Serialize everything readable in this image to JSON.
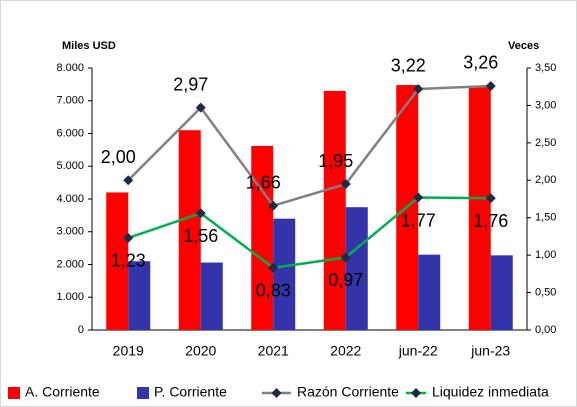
{
  "chart_data": {
    "type": "bar",
    "y_label": "Miles USD",
    "y2_label": "Veces",
    "categories": [
      "2019",
      "2020",
      "2021",
      "2022",
      "jun-22",
      "jun-23"
    ],
    "series": [
      {
        "name": "A. Corriente",
        "color": "#ff0000",
        "type": "bar",
        "values": [
          4200,
          6100,
          5620,
          7300,
          7480,
          7430
        ]
      },
      {
        "name": "P. Corriente",
        "color": "#3333aa",
        "type": "bar",
        "values": [
          2100,
          2060,
          3400,
          3750,
          2300,
          2280
        ]
      },
      {
        "name": "Razón Corriente",
        "color": "#808080",
        "type": "line",
        "axis": "y2",
        "values": [
          2.0,
          2.97,
          1.66,
          1.95,
          3.22,
          3.26
        ],
        "value_labels": [
          "2,00",
          "2,97",
          "1,66",
          "1,95",
          "3,22",
          "3,26"
        ]
      },
      {
        "name": "Liquidez inmediata",
        "color": "#00b050",
        "type": "line",
        "axis": "y2",
        "values": [
          1.23,
          1.56,
          0.83,
          0.97,
          1.77,
          1.76
        ],
        "value_labels": [
          "1,23",
          "1,56",
          "0,83",
          "0,97",
          "1,77",
          "1,76"
        ]
      }
    ],
    "ylim": [
      0,
      8000
    ],
    "yticks": [
      0,
      {
        "value": 1000,
        "label": "1.000"
      },
      {
        "value": 2000,
        "label": "2.000"
      },
      {
        "value": 3000,
        "label": "3.000"
      },
      {
        "value": 4000,
        "label": "4.000"
      },
      {
        "value": 5000,
        "label": "5.000"
      },
      {
        "value": 6000,
        "label": "6.000"
      },
      {
        "value": 7000,
        "label": "7.000"
      },
      {
        "value": 8000,
        "label": "8.000"
      }
    ],
    "y2lim": [
      0,
      3.5
    ],
    "y2ticks": [
      {
        "value": 0,
        "label": "0,00"
      },
      {
        "value": 0.5,
        "label": "0,50"
      },
      {
        "value": 1,
        "label": "1,00"
      },
      {
        "value": 1.5,
        "label": "1,50"
      },
      {
        "value": 2,
        "label": "2,00"
      },
      {
        "value": 2.5,
        "label": "2,50"
      },
      {
        "value": 3,
        "label": "3,00"
      },
      {
        "value": 3.5,
        "label": "3,50"
      }
    ],
    "legend": "bottom"
  }
}
